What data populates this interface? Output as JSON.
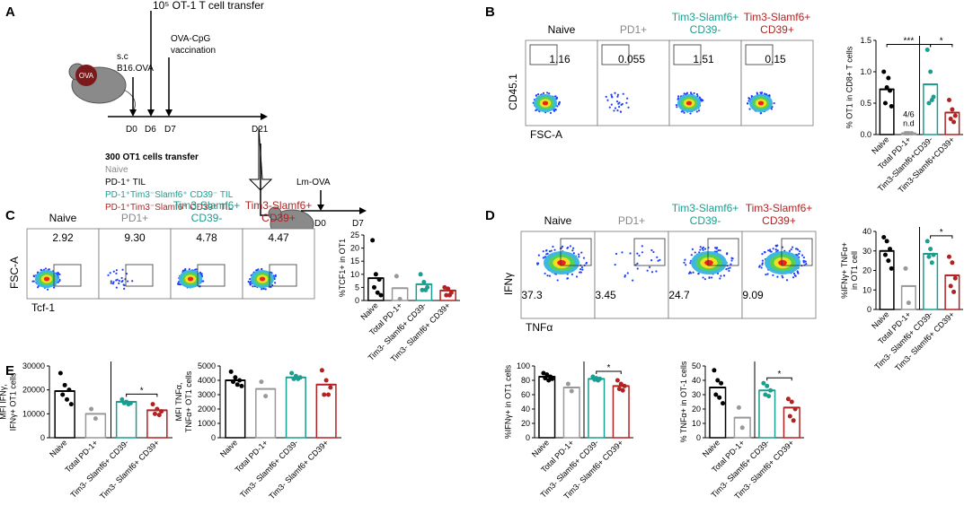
{
  "panel_labels": [
    "A",
    "B",
    "C",
    "D",
    "E"
  ],
  "panel_a": {
    "transfer_top": "10⁵ OT-1 T cell transfer",
    "sc": "s.c",
    "tumor": "B16.OVA",
    "mouse": "OVA",
    "vaccine": [
      "OVA-CpG",
      "vaccination"
    ],
    "days": [
      "D0",
      "D6",
      "D7",
      "D21"
    ],
    "transfer_title": "300 OT1 cells transfer",
    "groups": [
      "Naive",
      "PD-1⁺ TIL",
      "PD-1⁺Tim3⁻Slamf6⁺ CD39⁻ TIL",
      "PD-1⁺Tim3⁻Slamf6⁺ CD39⁺ TIL"
    ],
    "challenge": "Lm-OVA",
    "days2": [
      "D0",
      "D7"
    ]
  },
  "flow": [
    {
      "headers": [
        [
          "Naive"
        ],
        [
          "PD1+"
        ],
        [
          "Tim3-Slamf6+",
          "CD39-"
        ],
        [
          "Tim3-Slamf6+",
          "CD39+"
        ]
      ],
      "colors": [
        "#000000",
        "#888888",
        "#1a9e8f",
        "#b22222"
      ],
      "values": [
        "1.16",
        "0.055",
        "1.51",
        "0.15"
      ],
      "x_label": "FSC-A",
      "y_label": "CD45.1"
    },
    {
      "headers": [
        [
          "Naive"
        ],
        [
          "PD1+"
        ],
        [
          "Tim3-Slamf6+",
          "CD39-"
        ],
        [
          "Tim3-Slamf6+",
          "CD39+"
        ]
      ],
      "colors": [
        "#000000",
        "#888888",
        "#1a9e8f",
        "#b22222"
      ],
      "values": [
        "2.92",
        "9.30",
        "4.78",
        "4.47"
      ],
      "x_label": "Tcf-1",
      "y_label": "FSC-A"
    },
    {
      "headers": [
        [
          "Naive"
        ],
        [
          "PD1+"
        ],
        [
          "Tim3-Slamf6+",
          "CD39-"
        ],
        [
          "Tim3-Slamf6+",
          "CD39+"
        ]
      ],
      "colors": [
        "#000000",
        "#888888",
        "#1a9e8f",
        "#b22222"
      ],
      "values": [
        "37.3",
        "3.45",
        "24.7",
        "9.09"
      ],
      "x_label": "TNFα",
      "y_label": "IFNγ"
    }
  ],
  "chart_data": [
    {
      "type": "bar",
      "y_label": [
        "% OT1 in CD8+ T cells"
      ],
      "categories": [
        "Naive",
        "Total PD-1+",
        "Tim3-Slamf6+CD39-",
        "Tim3-Slamf6+CD39+"
      ],
      "colors": [
        "#000000",
        "#999999",
        "#1a9e8f",
        "#b22222"
      ],
      "values": [
        0.72,
        0.02,
        0.8,
        0.35
      ],
      "points": [
        [
          1.0,
          0.75,
          0.7,
          0.5,
          0.9,
          0.45
        ],
        [
          0.02,
          0.02,
          0.02,
          0.02
        ],
        [
          1.35,
          1.0,
          0.6,
          0.5,
          0.55
        ],
        [
          0.55,
          0.4,
          0.3,
          0.25,
          0.2
        ]
      ],
      "ylim": [
        0,
        1.5
      ],
      "yticks": [
        {
          "value": 0,
          "label": "0.0"
        },
        0.5,
        {
          "value": 1,
          "label": "1.0"
        },
        1.5
      ],
      "divider": true,
      "note": [
        "4/6",
        "n.d"
      ],
      "significance": [
        "***",
        "*"
      ]
    },
    {
      "type": "bar",
      "y_label": [
        "%TCF1+ in OT1"
      ],
      "categories": [
        "Naive",
        "Total PD-1+",
        "Tim3- Slamf6+ CD39-",
        "Tim3- Slamf6+ CD39+"
      ],
      "colors": [
        "#000000",
        "#999999",
        "#1a9e8f",
        "#b22222"
      ],
      "values": [
        8.5,
        4.7,
        6.2,
        3.8
      ],
      "points": [
        [
          23,
          10,
          8,
          5,
          3,
          2
        ],
        [
          9.3,
          0.5
        ],
        [
          10,
          7,
          5,
          4,
          4
        ],
        [
          5,
          4.5,
          3,
          2,
          2
        ]
      ],
      "ylim": [
        0,
        25
      ],
      "yticks": [
        0,
        5,
        10,
        15,
        20,
        25
      ],
      "divider": false
    },
    {
      "type": "bar",
      "y_label": [
        "%IFNγ+ TNFα+",
        "in OT1 cell"
      ],
      "categories": [
        "Naive",
        "Total PD-1+",
        "Tim3- Slamf6+ CD39-",
        "Tim3- Slamf6+ CD39+"
      ],
      "colors": [
        "#000000",
        "#999999",
        "#1a9e8f",
        "#b22222"
      ],
      "values": [
        30,
        12,
        28.5,
        17.5
      ],
      "points": [
        [
          37,
          35,
          31,
          28,
          25,
          21
        ],
        [
          21,
          3.4
        ],
        [
          35,
          31,
          28,
          27,
          24
        ],
        [
          27,
          24,
          16,
          12,
          9
        ]
      ],
      "ylim": [
        0,
        40
      ],
      "yticks": [
        0,
        10,
        20,
        30,
        40
      ],
      "divider": true,
      "significance": [
        "*"
      ]
    },
    {
      "type": "bar",
      "y_label": [
        "MFI IFNγ,",
        "IFNγ+ OT1 cells"
      ],
      "categories": [
        "Naive",
        "Total PD-1+",
        "Tim3- Slamf6+ CD39-",
        "Tim3- Slamf6+ CD39+"
      ],
      "colors": [
        "#000000",
        "#999999",
        "#1a9e8f",
        "#b22222"
      ],
      "values": [
        19500,
        10000,
        15000,
        11500
      ],
      "points": [
        [
          27000,
          22000,
          20000,
          18000,
          16000,
          14000
        ],
        [
          12000,
          8000
        ],
        [
          16000,
          15000,
          14500,
          14500,
          14000
        ],
        [
          14000,
          12000,
          11000,
          10000,
          9500
        ]
      ],
      "ylim": [
        0,
        30000
      ],
      "yticks": [
        0,
        10000,
        20000,
        30000
      ],
      "divider": true,
      "significance": [
        "*"
      ]
    },
    {
      "type": "bar",
      "y_label": [
        "MFI TNFα,",
        "TNFα+ OT1 cells"
      ],
      "categories": [
        "Naive",
        "Total PD-1+",
        "Tim3- Slamf6+ CD39-",
        "Tim3- Slamf6+ CD39+"
      ],
      "colors": [
        "#000000",
        "#999999",
        "#1a9e8f",
        "#b22222"
      ],
      "values": [
        4000,
        3400,
        4200,
        3700
      ],
      "points": [
        [
          4600,
          4200,
          4000,
          3900,
          3700,
          3600
        ],
        [
          3900,
          2900
        ],
        [
          4500,
          4300,
          4200,
          4100,
          4100
        ],
        [
          4700,
          4000,
          3500,
          3000,
          3000
        ]
      ],
      "ylim": [
        0,
        5000
      ],
      "yticks": [
        0,
        1000,
        2000,
        3000,
        4000,
        5000
      ],
      "divider": false
    },
    {
      "type": "bar",
      "y_label": [
        "%IFNγ+ in OT1 cells"
      ],
      "categories": [
        "Naive",
        "Total PD-1+",
        "Tim3- Slamf6+ CD39-",
        "Tim3- Slamf6+ CD39+"
      ],
      "colors": [
        "#000000",
        "#999999",
        "#1a9e8f",
        "#b22222"
      ],
      "values": [
        85,
        70,
        82,
        72
      ],
      "points": [
        [
          90,
          88,
          85,
          83,
          80,
          82
        ],
        [
          75,
          65
        ],
        [
          85,
          83,
          82,
          81,
          80
        ],
        [
          80,
          75,
          72,
          68,
          66
        ]
      ],
      "ylim": [
        0,
        100
      ],
      "yticks": [
        0,
        20,
        40,
        60,
        80,
        100
      ],
      "divider": true,
      "significance": [
        "*"
      ]
    },
    {
      "type": "bar",
      "y_label": [
        "% TNFα+ in OT-1 cells"
      ],
      "categories": [
        "Naive",
        "Total PD-1+",
        "Tim3- Slamf6+ CD39-",
        "Tim3- Slamf6+ CD39+"
      ],
      "colors": [
        "#000000",
        "#999999",
        "#1a9e8f",
        "#b22222"
      ],
      "values": [
        35,
        14,
        33,
        21
      ],
      "points": [
        [
          47,
          40,
          38,
          30,
          28,
          24
        ],
        [
          21,
          7
        ],
        [
          38,
          36,
          33,
          30,
          29
        ],
        [
          27,
          25,
          20,
          15,
          12
        ]
      ],
      "ylim": [
        0,
        50
      ],
      "yticks": [
        0,
        10,
        20,
        30,
        40,
        50
      ],
      "divider": true,
      "significance": [
        "*"
      ]
    }
  ]
}
